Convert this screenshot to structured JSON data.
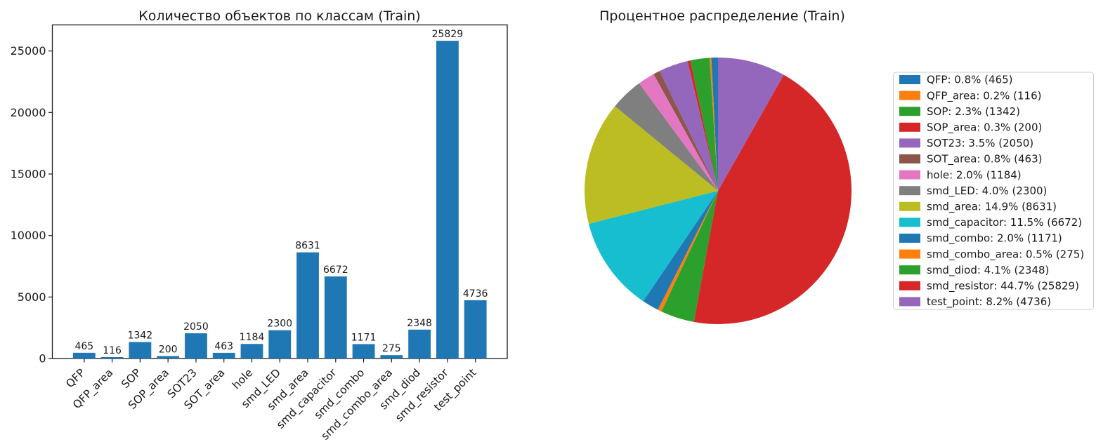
{
  "chart_data": [
    {
      "type": "bar",
      "title": "Количество объектов по классам (Train)",
      "categories": [
        "QFP",
        "QFP_area",
        "SOP",
        "SOP_area",
        "SOT23",
        "SOT_area",
        "hole",
        "smd_LED",
        "smd_area",
        "smd_capacitor",
        "smd_combo",
        "smd_combo_area",
        "smd_diod",
        "smd_resistor",
        "test_point"
      ],
      "values": [
        465,
        116,
        1342,
        200,
        2050,
        463,
        1184,
        2300,
        8631,
        6672,
        1171,
        275,
        2348,
        25829,
        4736
      ],
      "yticks": [
        0,
        5000,
        10000,
        15000,
        20000,
        25000
      ],
      "ylim": [
        0,
        27120
      ],
      "xlabel": "",
      "ylabel": "",
      "grid": false,
      "xtick_rotation": 45,
      "value_labels_shown": true,
      "bar_color": "#1f77b4"
    },
    {
      "type": "pie",
      "title": "Процентное распределение (Train)",
      "labels": [
        "QFP",
        "QFP_area",
        "SOP",
        "SOP_area",
        "SOT23",
        "SOT_area",
        "hole",
        "smd_LED",
        "smd_area",
        "smd_capacitor",
        "smd_combo",
        "smd_combo_area",
        "smd_diod",
        "smd_resistor",
        "test_point"
      ],
      "values": [
        465,
        116,
        1342,
        200,
        2050,
        463,
        1184,
        2300,
        8631,
        6672,
        1171,
        275,
        2348,
        25829,
        4736
      ],
      "percentages": [
        0.8,
        0.2,
        2.3,
        0.3,
        3.5,
        0.8,
        2.0,
        4.0,
        14.9,
        11.5,
        2.0,
        0.5,
        4.1,
        44.7,
        8.2
      ],
      "start_angle": 90,
      "direction": "counterclockwise",
      "colors": [
        "#1f77b4",
        "#ff7f0e",
        "#2ca02c",
        "#d62728",
        "#9467bd",
        "#8c564b",
        "#e377c2",
        "#7f7f7f",
        "#bcbd22",
        "#17becf"
      ],
      "legend_position": "right",
      "legend_entries": [
        "QFP: 0.8% (465)",
        "QFP_area: 0.2% (116)",
        "SOP: 2.3% (1342)",
        "SOP_area: 0.3% (200)",
        "SOT23: 3.5% (2050)",
        "SOT_area: 0.8% (463)",
        "hole: 2.0% (1184)",
        "smd_LED: 4.0% (2300)",
        "smd_area: 14.9% (8631)",
        "smd_capacitor: 11.5% (6672)",
        "smd_combo: 2.0% (1171)",
        "smd_combo_area: 0.5% (275)",
        "smd_diod: 4.1% (2348)",
        "smd_resistor: 44.7% (25829)",
        "test_point: 8.2% (4736)"
      ],
      "legend_border_color": "#cccccc",
      "axis_color": "#1a1a1a"
    }
  ]
}
